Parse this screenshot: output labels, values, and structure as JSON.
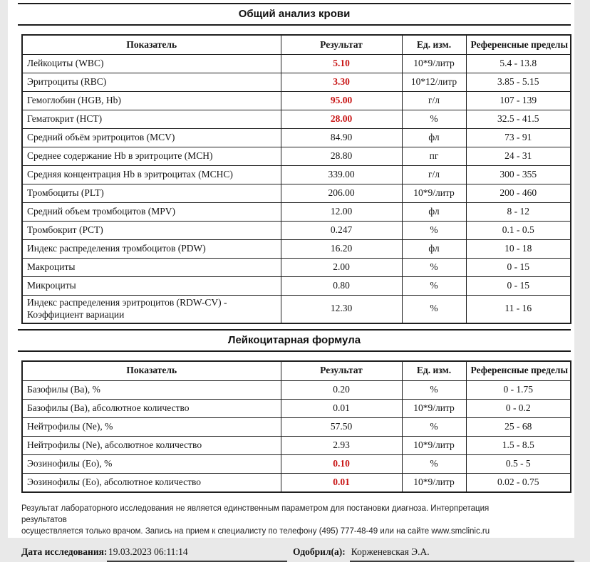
{
  "report": {
    "sections": [
      {
        "title": "Общий анализ крови",
        "columns": [
          "Показатель",
          "Результат",
          "Ед. изм.",
          "Референсные пределы"
        ],
        "rows": [
          {
            "name": "Лейкоциты (WBC)",
            "result": "5.10",
            "unit": "10*9/литр",
            "ref": "5.4 - 13.8",
            "red": true
          },
          {
            "name": "Эритроциты (RBC)",
            "result": "3.30",
            "unit": "10*12/литр",
            "ref": "3.85 - 5.15",
            "red": true
          },
          {
            "name": "Гемоглобин (HGB, Hb)",
            "result": "95.00",
            "unit": "г/л",
            "ref": "107 - 139",
            "red": true
          },
          {
            "name": "Гематокрит (HCT)",
            "result": "28.00",
            "unit": "%",
            "ref": "32.5 - 41.5",
            "red": true
          },
          {
            "name": "Средний объём эритроцитов  (MCV)",
            "result": "84.90",
            "unit": "фл",
            "ref": "73 - 91",
            "red": false
          },
          {
            "name": "Среднее содержание Hb в эритроците (MCH)",
            "result": "28.80",
            "unit": "пг",
            "ref": "24 - 31",
            "red": false
          },
          {
            "name": "Средняя концентрация Hb в эритроцитах (MCHC)",
            "result": "339.00",
            "unit": "г/л",
            "ref": "300 - 355",
            "red": false
          },
          {
            "name": "Тромбоциты (PLT)",
            "result": "206.00",
            "unit": "10*9/литр",
            "ref": "200 - 460",
            "red": false
          },
          {
            "name": "Средний объем тромбоцитов (MPV)",
            "result": "12.00",
            "unit": "фл",
            "ref": "8 - 12",
            "red": false
          },
          {
            "name": "Тромбокрит (PCT)",
            "result": "0.247",
            "unit": "%",
            "ref": "0.1 - 0.5",
            "red": false
          },
          {
            "name": "Индекс распределения тромбоцитов (PDW)",
            "result": "16.20",
            "unit": "фл",
            "ref": "10 - 18",
            "red": false
          },
          {
            "name": "Макроциты",
            "result": "2.00",
            "unit": "%",
            "ref": "0 - 15",
            "red": false
          },
          {
            "name": "Микроциты",
            "result": "0.80",
            "unit": "%",
            "ref": "0 - 15",
            "red": false
          },
          {
            "name": "Индекс распределения эритроцитов (RDW-CV) - Коэффициент вариации",
            "result": "12.30",
            "unit": "%",
            "ref": "11 - 16",
            "red": false
          }
        ]
      },
      {
        "title": "Лейкоцитарная формула",
        "columns": [
          "Показатель",
          "Результат",
          "Ед. изм.",
          "Референсные пределы"
        ],
        "rows": [
          {
            "name": "Базофилы (Ba), %",
            "result": "0.20",
            "unit": "%",
            "ref": "0 - 1.75",
            "red": false
          },
          {
            "name": "Базофилы (Ba), абсолютное количество",
            "result": "0.01",
            "unit": "10*9/литр",
            "ref": "0 - 0.2",
            "red": false
          },
          {
            "name": "Нейтрофилы (Ne), %",
            "result": "57.50",
            "unit": "%",
            "ref": "25 - 68",
            "red": false
          },
          {
            "name": "Нейтрофилы (Ne), абсолютное количество",
            "result": "2.93",
            "unit": "10*9/литр",
            "ref": "1.5 - 8.5",
            "red": false
          },
          {
            "name": "Эозинофилы (Eo), %",
            "result": "0.10",
            "unit": "%",
            "ref": "0.5 - 5",
            "red": true
          },
          {
            "name": "Эозинофилы (Eo), абсолютное количество",
            "result": "0.01",
            "unit": "10*9/литр",
            "ref": "0.02 - 0.75",
            "red": true
          }
        ]
      }
    ],
    "disclaimer": {
      "line1": "Результат лабораторного исследования не является единственным параметром для постановки диагноза. Интерпретация результатов",
      "line2": "осуществляется только врачом. Запись на прием к специалисту по телефону (495) 777-48-49 или на сайте www.smclinic.ru"
    },
    "footer": {
      "date_label": "Дата исследования:",
      "date_value": "19.03.2023 06:11:14",
      "approved_label": "Одобрил(а):",
      "approved_value": "Корженевская Э.А."
    },
    "colors": {
      "alert_red": "#c81414",
      "table_border": "#1f1f1f"
    }
  }
}
